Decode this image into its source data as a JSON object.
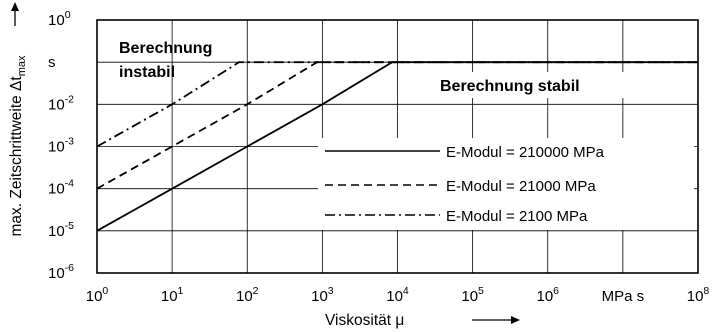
{
  "chart_data": {
    "type": "line",
    "x_scale": "log",
    "y_scale": "log",
    "xlim": [
      1,
      100000000
    ],
    "ylim": [
      1e-06,
      1
    ],
    "ylabel": "max. Zeitschrittweite Δt",
    "ylabel_sub": "max",
    "xlabel": "Viskosität μ",
    "x_ticks": [
      {
        "base": "10",
        "exp": "0"
      },
      {
        "base": "10",
        "exp": "1"
      },
      {
        "base": "10",
        "exp": "2"
      },
      {
        "base": "10",
        "exp": "3"
      },
      {
        "base": "10",
        "exp": "4"
      },
      {
        "base": "10",
        "exp": "5"
      },
      {
        "base": "10",
        "exp": "6"
      },
      {
        "base": "MPa s",
        "exp": ""
      },
      {
        "base": "10",
        "exp": "8"
      }
    ],
    "y_ticks": [
      {
        "base": "10",
        "exp": "0"
      },
      {
        "base": "s",
        "exp": ""
      },
      {
        "base": "10",
        "exp": "-2"
      },
      {
        "base": "10",
        "exp": "-3"
      },
      {
        "base": "10",
        "exp": "-4"
      },
      {
        "base": "10",
        "exp": "-5"
      },
      {
        "base": "10",
        "exp": "-6"
      }
    ],
    "grid": true,
    "annotations": [
      {
        "text": "Berechnung",
        "region": "top-left"
      },
      {
        "text": "instabil",
        "region": "top-left"
      },
      {
        "text": "Berechnung stabil",
        "region": "right"
      }
    ],
    "legend_placement": "center-right",
    "series": [
      {
        "name": "E-Modul = 210000 MPa",
        "style": "solid",
        "x": [
          1,
          10,
          100,
          1000,
          8500,
          100000000
        ],
        "y": [
          1e-05,
          0.0001,
          0.001,
          0.01,
          0.1,
          0.1
        ]
      },
      {
        "name": "E-Modul = 21000 MPa",
        "style": "dashed",
        "x": [
          1,
          10,
          100,
          850,
          100000000
        ],
        "y": [
          0.0001,
          0.001,
          0.01,
          0.1,
          0.1
        ]
      },
      {
        "name": "E-Modul = 2100 MPa",
        "style": "dashdot",
        "x": [
          1,
          10,
          78,
          100000000
        ],
        "y": [
          0.001,
          0.01,
          0.1,
          0.1
        ]
      }
    ]
  }
}
